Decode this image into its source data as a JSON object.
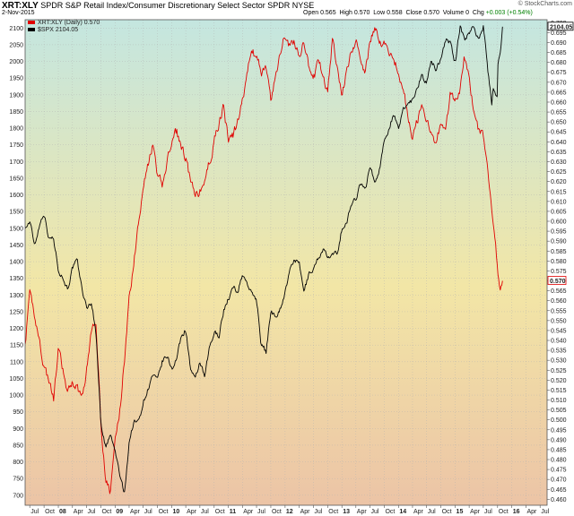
{
  "header": {
    "symbol": "XRT:XLY",
    "description": "SPDR S&P Retail Index/Consumer Discretionary Select Sector SPDR NYSE",
    "date": "2-Nov-2015",
    "open_label": "Open",
    "open": "0.565",
    "high_label": "High",
    "high": "0.570",
    "low_label": "Low",
    "low": "0.558",
    "close_label": "Close",
    "close": "0.570",
    "volume_label": "Volume",
    "volume": "0",
    "chg_label": "Chg",
    "chg": "+0.003 (+0.54%)",
    "credit": "© StockCharts.com"
  },
  "legend": {
    "ratio": "XRT:XLY (Daily) 0.570",
    "spx": "$SPX 2104.05"
  },
  "colors": {
    "ratio": "#e00000",
    "spx": "#000000",
    "bg_top": "#c4e6e0",
    "bg_mid": "#f2e6a6",
    "bg_bottom": "#ecc4a6",
    "grid": "#b0b0b0"
  },
  "chart_data": {
    "type": "line",
    "x_tick_labels": [
      "Jul",
      "Oct",
      "08",
      "Apr",
      "Jul",
      "Oct",
      "09",
      "Apr",
      "Jul",
      "Oct",
      "10",
      "Apr",
      "Jul",
      "Oct",
      "11",
      "Apr",
      "Jul",
      "Oct",
      "12",
      "Apr",
      "Jul",
      "Oct",
      "13",
      "Apr",
      "Jul",
      "Oct",
      "14",
      "Apr",
      "Jul",
      "Oct",
      "15",
      "Apr",
      "Jul",
      "Oct",
      "16",
      "Apr",
      "Jul"
    ],
    "xlim": [
      "2007-06-01",
      "2016-08-15"
    ],
    "left_axis": {
      "ticks": [
        "2100",
        "2050",
        "2000",
        "1950",
        "1900",
        "1850",
        "1800",
        "1750",
        "1700",
        "1650",
        "1600",
        "1550",
        "1500",
        "1450",
        "1400",
        "1350",
        "1300",
        "1250",
        "1200",
        "1150",
        "1100",
        "1050",
        "1000",
        "950",
        "900",
        "850",
        "800",
        "750",
        "700"
      ],
      "range": [
        670,
        2125
      ]
    },
    "right_axis": {
      "ticks": [
        "0.700",
        "0.695",
        "0.690",
        "0.685",
        "0.680",
        "0.675",
        "0.670",
        "0.665",
        "0.660",
        "0.655",
        "0.650",
        "0.645",
        "0.640",
        "0.635",
        "0.630",
        "0.625",
        "0.620",
        "0.615",
        "0.610",
        "0.605",
        "0.600",
        "0.595",
        "0.590",
        "0.585",
        "0.580",
        "0.575",
        "0.570",
        "0.565",
        "0.560",
        "0.555",
        "0.550",
        "0.545",
        "0.540",
        "0.535",
        "0.530",
        "0.525",
        "0.520",
        "0.515",
        "0.510",
        "0.505",
        "0.500",
        "0.495",
        "0.490",
        "0.485",
        "0.480",
        "0.475",
        "0.470",
        "0.465",
        "0.460"
      ],
      "range": [
        0.457,
        0.7015
      ]
    },
    "last_value_labels": {
      "spx": "2104.05",
      "ratio": "0.570"
    },
    "series": [
      {
        "name": "XRT:XLY (Daily) 0.570",
        "axis": "right",
        "color": "#e00000",
        "points": [
          [
            "2007-06-01",
            0.538
          ],
          [
            "2007-07-01",
            0.562
          ],
          [
            "2007-08-01",
            0.553
          ],
          [
            "2007-09-01",
            0.54
          ],
          [
            "2007-10-01",
            0.527
          ],
          [
            "2007-11-01",
            0.52
          ],
          [
            "2007-12-01",
            0.51
          ],
          [
            "2008-01-01",
            0.535
          ],
          [
            "2008-02-01",
            0.524
          ],
          [
            "2008-03-01",
            0.512
          ],
          [
            "2008-04-01",
            0.52
          ],
          [
            "2008-05-01",
            0.516
          ],
          [
            "2008-06-01",
            0.512
          ],
          [
            "2008-07-01",
            0.525
          ],
          [
            "2008-08-01",
            0.545
          ],
          [
            "2008-09-01",
            0.548
          ],
          [
            "2008-10-01",
            0.5
          ],
          [
            "2008-11-01",
            0.47
          ],
          [
            "2008-12-01",
            0.463
          ],
          [
            "2009-01-01",
            0.49
          ],
          [
            "2009-02-01",
            0.505
          ],
          [
            "2009-03-01",
            0.53
          ],
          [
            "2009-04-01",
            0.56
          ],
          [
            "2009-05-01",
            0.58
          ],
          [
            "2009-06-01",
            0.6
          ],
          [
            "2009-07-01",
            0.62
          ],
          [
            "2009-08-01",
            0.628
          ],
          [
            "2009-09-01",
            0.638
          ],
          [
            "2009-10-01",
            0.622
          ],
          [
            "2009-11-01",
            0.618
          ],
          [
            "2009-12-01",
            0.63
          ],
          [
            "2010-01-01",
            0.64
          ],
          [
            "2010-02-01",
            0.645
          ],
          [
            "2010-03-01",
            0.638
          ],
          [
            "2010-04-01",
            0.632
          ],
          [
            "2010-05-01",
            0.62
          ],
          [
            "2010-06-01",
            0.612
          ],
          [
            "2010-07-01",
            0.615
          ],
          [
            "2010-08-01",
            0.62
          ],
          [
            "2010-09-01",
            0.63
          ],
          [
            "2010-10-01",
            0.64
          ],
          [
            "2010-11-01",
            0.65
          ],
          [
            "2010-12-01",
            0.658
          ],
          [
            "2011-01-01",
            0.64
          ],
          [
            "2011-02-01",
            0.643
          ],
          [
            "2011-03-01",
            0.65
          ],
          [
            "2011-04-01",
            0.66
          ],
          [
            "2011-05-01",
            0.675
          ],
          [
            "2011-06-01",
            0.686
          ],
          [
            "2011-07-01",
            0.682
          ],
          [
            "2011-08-01",
            0.675
          ],
          [
            "2011-09-01",
            0.678
          ],
          [
            "2011-10-01",
            0.66
          ],
          [
            "2011-11-01",
            0.672
          ],
          [
            "2011-12-01",
            0.686
          ],
          [
            "2012-01-01",
            0.694
          ],
          [
            "2012-02-01",
            0.688
          ],
          [
            "2012-03-01",
            0.69
          ],
          [
            "2012-04-01",
            0.684
          ],
          [
            "2012-05-01",
            0.69
          ],
          [
            "2012-06-01",
            0.678
          ],
          [
            "2012-07-01",
            0.67
          ],
          [
            "2012-08-01",
            0.68
          ],
          [
            "2012-09-01",
            0.675
          ],
          [
            "2012-10-01",
            0.665
          ],
          [
            "2012-11-01",
            0.69
          ],
          [
            "2012-12-01",
            0.68
          ],
          [
            "2013-01-01",
            0.664
          ],
          [
            "2013-02-01",
            0.676
          ],
          [
            "2013-03-01",
            0.686
          ],
          [
            "2013-04-01",
            0.69
          ],
          [
            "2013-05-01",
            0.684
          ],
          [
            "2013-06-01",
            0.675
          ],
          [
            "2013-07-01",
            0.69
          ],
          [
            "2013-08-01",
            0.698
          ],
          [
            "2013-09-01",
            0.69
          ],
          [
            "2013-10-01",
            0.69
          ],
          [
            "2013-11-01",
            0.685
          ],
          [
            "2013-12-01",
            0.683
          ],
          [
            "2014-01-01",
            0.675
          ],
          [
            "2014-02-01",
            0.665
          ],
          [
            "2014-03-01",
            0.655
          ],
          [
            "2014-04-01",
            0.642
          ],
          [
            "2014-05-01",
            0.65
          ],
          [
            "2014-06-01",
            0.658
          ],
          [
            "2014-07-01",
            0.652
          ],
          [
            "2014-08-01",
            0.646
          ],
          [
            "2014-09-01",
            0.64
          ],
          [
            "2014-10-01",
            0.65
          ],
          [
            "2014-11-01",
            0.648
          ],
          [
            "2014-12-01",
            0.664
          ],
          [
            "2015-01-01",
            0.66
          ],
          [
            "2015-02-01",
            0.665
          ],
          [
            "2015-03-01",
            0.682
          ],
          [
            "2015-04-01",
            0.672
          ],
          [
            "2015-05-01",
            0.655
          ],
          [
            "2015-06-01",
            0.646
          ],
          [
            "2015-07-01",
            0.642
          ],
          [
            "2015-08-01",
            0.622
          ],
          [
            "2015-09-01",
            0.603
          ],
          [
            "2015-10-01",
            0.575
          ],
          [
            "2015-10-20",
            0.565
          ],
          [
            "2015-11-02",
            0.57
          ]
        ]
      },
      {
        "name": "$SPX 2104.05",
        "axis": "left",
        "color": "#000000",
        "points": [
          [
            "2007-06-01",
            1500
          ],
          [
            "2007-07-01",
            1520
          ],
          [
            "2007-08-01",
            1450
          ],
          [
            "2007-09-01",
            1510
          ],
          [
            "2007-10-01",
            1550
          ],
          [
            "2007-11-01",
            1470
          ],
          [
            "2007-12-01",
            1470
          ],
          [
            "2008-01-01",
            1380
          ],
          [
            "2008-02-01",
            1350
          ],
          [
            "2008-03-01",
            1320
          ],
          [
            "2008-04-01",
            1380
          ],
          [
            "2008-05-01",
            1400
          ],
          [
            "2008-06-01",
            1320
          ],
          [
            "2008-07-01",
            1260
          ],
          [
            "2008-08-01",
            1280
          ],
          [
            "2008-09-01",
            1180
          ],
          [
            "2008-10-01",
            920
          ],
          [
            "2008-11-01",
            840
          ],
          [
            "2008-12-01",
            880
          ],
          [
            "2009-01-01",
            830
          ],
          [
            "2009-02-01",
            760
          ],
          [
            "2009-03-01",
            700
          ],
          [
            "2009-04-01",
            860
          ],
          [
            "2009-05-01",
            920
          ],
          [
            "2009-06-01",
            920
          ],
          [
            "2009-07-01",
            980
          ],
          [
            "2009-08-01",
            1020
          ],
          [
            "2009-09-01",
            1060
          ],
          [
            "2009-10-01",
            1040
          ],
          [
            "2009-11-01",
            1100
          ],
          [
            "2009-12-01",
            1115
          ],
          [
            "2010-01-01",
            1080
          ],
          [
            "2010-02-01",
            1110
          ],
          [
            "2010-03-01",
            1170
          ],
          [
            "2010-04-01",
            1200
          ],
          [
            "2010-05-01",
            1080
          ],
          [
            "2010-06-01",
            1040
          ],
          [
            "2010-07-01",
            1100
          ],
          [
            "2010-08-01",
            1050
          ],
          [
            "2010-09-01",
            1140
          ],
          [
            "2010-10-01",
            1185
          ],
          [
            "2010-11-01",
            1180
          ],
          [
            "2010-12-01",
            1255
          ],
          [
            "2011-01-01",
            1290
          ],
          [
            "2011-02-01",
            1320
          ],
          [
            "2011-03-01",
            1310
          ],
          [
            "2011-04-01",
            1360
          ],
          [
            "2011-05-01",
            1340
          ],
          [
            "2011-06-01",
            1300
          ],
          [
            "2011-07-01",
            1290
          ],
          [
            "2011-08-01",
            1150
          ],
          [
            "2011-09-01",
            1130
          ],
          [
            "2011-10-01",
            1250
          ],
          [
            "2011-11-01",
            1240
          ],
          [
            "2011-12-01",
            1260
          ],
          [
            "2012-01-01",
            1310
          ],
          [
            "2012-02-01",
            1370
          ],
          [
            "2012-03-01",
            1410
          ],
          [
            "2012-04-01",
            1390
          ],
          [
            "2012-05-01",
            1310
          ],
          [
            "2012-06-01",
            1360
          ],
          [
            "2012-07-01",
            1380
          ],
          [
            "2012-08-01",
            1410
          ],
          [
            "2012-09-01",
            1440
          ],
          [
            "2012-10-01",
            1410
          ],
          [
            "2012-11-01",
            1415
          ],
          [
            "2012-12-01",
            1425
          ],
          [
            "2013-01-01",
            1500
          ],
          [
            "2013-02-01",
            1515
          ],
          [
            "2013-03-01",
            1570
          ],
          [
            "2013-04-01",
            1590
          ],
          [
            "2013-05-01",
            1640
          ],
          [
            "2013-06-01",
            1610
          ],
          [
            "2013-07-01",
            1690
          ],
          [
            "2013-08-01",
            1635
          ],
          [
            "2013-09-01",
            1680
          ],
          [
            "2013-10-01",
            1760
          ],
          [
            "2013-11-01",
            1805
          ],
          [
            "2013-12-01",
            1845
          ],
          [
            "2014-01-01",
            1790
          ],
          [
            "2014-02-01",
            1860
          ],
          [
            "2014-03-01",
            1875
          ],
          [
            "2014-04-01",
            1885
          ],
          [
            "2014-05-01",
            1925
          ],
          [
            "2014-06-01",
            1960
          ],
          [
            "2014-07-01",
            1935
          ],
          [
            "2014-08-01",
            2000
          ],
          [
            "2014-09-01",
            1975
          ],
          [
            "2014-10-01",
            2015
          ],
          [
            "2014-11-01",
            2065
          ],
          [
            "2014-12-01",
            2055
          ],
          [
            "2015-01-01",
            1995
          ],
          [
            "2015-02-01",
            2105
          ],
          [
            "2015-03-01",
            2065
          ],
          [
            "2015-04-01",
            2085
          ],
          [
            "2015-05-01",
            2110
          ],
          [
            "2015-06-01",
            2065
          ],
          [
            "2015-07-01",
            2105
          ],
          [
            "2015-08-01",
            1970
          ],
          [
            "2015-08-24",
            1870
          ],
          [
            "2015-09-01",
            1920
          ],
          [
            "2015-09-28",
            1880
          ],
          [
            "2015-10-01",
            1990
          ],
          [
            "2015-10-20",
            2030
          ],
          [
            "2015-11-02",
            2104
          ]
        ]
      }
    ]
  }
}
